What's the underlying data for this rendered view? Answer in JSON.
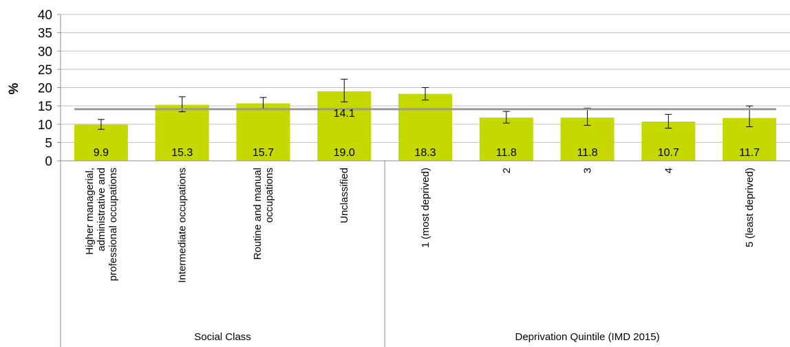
{
  "chart_data": {
    "type": "bar",
    "title": "",
    "xlabel": "",
    "ylabel": "%",
    "ylim": [
      0,
      40
    ],
    "yticks": [
      0,
      5,
      10,
      15,
      20,
      25,
      30,
      35,
      40
    ],
    "grid": true,
    "legend": "none",
    "colors": {
      "bar": "#c5d900",
      "average_line": "#999999",
      "grid": "#bfbfbf",
      "axis": "#8c8c8c",
      "error_bar": "#000000"
    },
    "groups": [
      {
        "label": "Social Class",
        "start": 0,
        "count": 4
      },
      {
        "label": "Deprivation Quintile (IMD 2015)",
        "start": 4,
        "count": 5
      }
    ],
    "categories": [
      [
        "Higher managerial,",
        "administrative and",
        "professional occupations"
      ],
      [
        "Intermediate occupations"
      ],
      [
        "Routine and manual",
        "occupations"
      ],
      [
        "Unclassified"
      ],
      [
        "1 (most deprived)"
      ],
      [
        "2"
      ],
      [
        "3"
      ],
      [
        "4"
      ],
      [
        "5 (least deprived)"
      ]
    ],
    "series": [
      {
        "values": [
          9.9,
          15.3,
          15.7,
          19.0,
          18.3,
          11.8,
          11.8,
          10.7,
          11.7
        ],
        "labels": [
          "9.9",
          "15.3",
          "15.7",
          "19.0",
          "18.3",
          "11.8",
          "11.8",
          "10.7",
          "11.7"
        ],
        "ci_lower": [
          8.6,
          13.4,
          14.3,
          16.1,
          16.6,
          10.3,
          9.7,
          8.9,
          9.3
        ],
        "ci_upper": [
          11.3,
          17.5,
          17.3,
          22.3,
          20.0,
          13.5,
          14.4,
          12.7,
          15.0
        ]
      }
    ],
    "average": {
      "value": 14.1,
      "label": "14.1"
    }
  }
}
